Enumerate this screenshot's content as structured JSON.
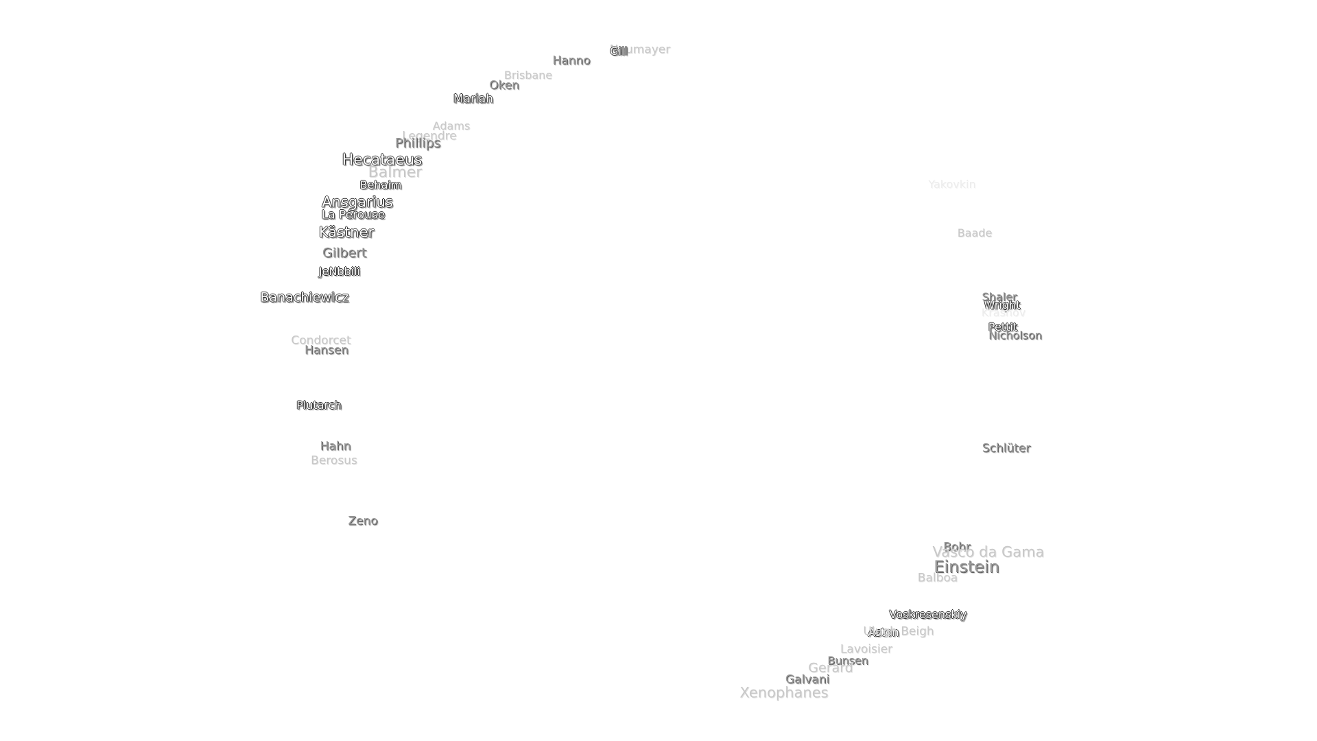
{
  "labels": [
    "Neumayer",
    "Gill",
    "Hanno",
    "Brisbane",
    "Oken",
    "Mariah",
    "Adams",
    "Legendre",
    "Phillips",
    "Hecataeus",
    "Balmer",
    "Behaim",
    "Ansgarius",
    "La Pérouse",
    "Kästner",
    "Gilbert",
    "JeNbbili",
    "Banachiewicz",
    "Condorcet",
    "Hansen",
    "Plutarch",
    "Hahn",
    "Berosus",
    "Zeno",
    "Yakovkin",
    "Baade",
    "Shaler",
    "Wright",
    "Krasnov",
    "Pettit",
    "Nicholson",
    "Schlüter",
    "Bohr",
    "Vasco da Gama",
    "Einstein",
    "Balboa",
    "Voskresenskiy",
    "Aston",
    "Ulugh Beigh",
    "Lavoisier",
    "Bunsen",
    "Gerard",
    "Galvani",
    "Xenophanes"
  ]
}
